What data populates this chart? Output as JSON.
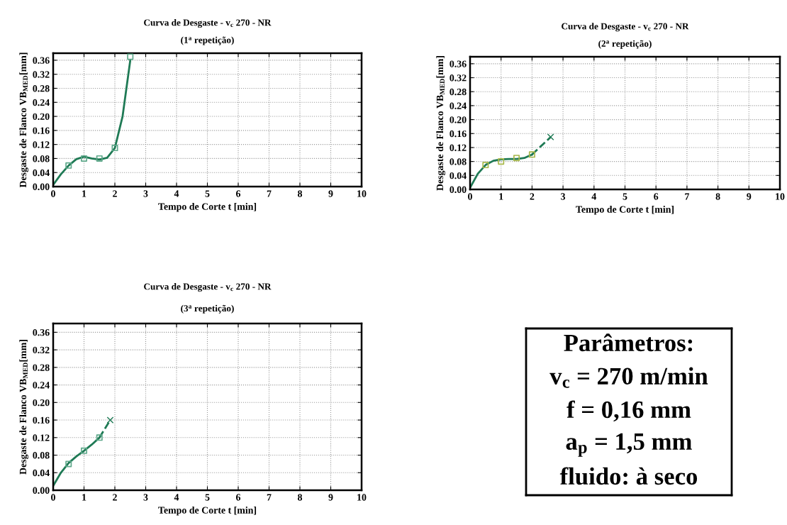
{
  "chart_data": [
    {
      "type": "scatter",
      "title": "Curva de Desgaste - v$_{c}$ 270 - NR",
      "subtitle": "(1$^{a}$ repetição)",
      "xlabel": "Tempo de Corte t [min]",
      "ylabel": "Desgaste de Flanco VB$_{MED}$[mm]",
      "xlim": [
        0,
        10
      ],
      "ylim": [
        0,
        0.38
      ],
      "xticks": [
        0,
        1,
        2,
        3,
        4,
        5,
        6,
        7,
        8,
        9,
        10
      ],
      "yticks": [
        {
          "value": 0,
          "label": "0.00"
        },
        {
          "value": 0.04,
          "label": "0.04"
        },
        {
          "value": 0.08,
          "label": "0.08"
        },
        {
          "value": 0.12,
          "label": "0.12"
        },
        {
          "value": 0.16,
          "label": "0.16"
        },
        {
          "value": 0.2,
          "label": "0.20"
        },
        {
          "value": 0.24,
          "label": "0.24"
        },
        {
          "value": 0.28,
          "label": "0.28"
        },
        {
          "value": 0.32,
          "label": "0.32"
        },
        {
          "value": 0.36,
          "label": "0.36"
        }
      ],
      "grid": true,
      "series": [
        {
          "type": "line",
          "color": "#1f7a55",
          "line_style": "solid",
          "marker": "none",
          "x": [
            0,
            0.25,
            0.5,
            0.75,
            1,
            1.25,
            1.5,
            1.75,
            2,
            2.25,
            2.5
          ],
          "values": [
            0.005,
            0.035,
            0.06,
            0.078,
            0.085,
            0.08,
            0.077,
            0.082,
            0.11,
            0.2,
            0.36
          ]
        },
        {
          "type": "scatter",
          "color": "#5ea88a",
          "marker": "square",
          "x": [
            0.5,
            1,
            1.5,
            2,
            2.5
          ],
          "values": [
            0.06,
            0.08,
            0.08,
            0.11,
            0.37
          ]
        }
      ]
    },
    {
      "type": "scatter",
      "title": "Curva de Desgaste - v$_{c}$ 270 - NR",
      "subtitle": "(2$^{a}$ repetição)",
      "xlabel": "Tempo de Corte t [min]",
      "ylabel": "Desgaste de Flanco VB$_{MED}$[mm]",
      "xlim": [
        0,
        10
      ],
      "ylim": [
        0,
        0.38
      ],
      "xticks": [
        0,
        1,
        2,
        3,
        4,
        5,
        6,
        7,
        8,
        9,
        10
      ],
      "yticks": [
        {
          "value": 0,
          "label": "0.00"
        },
        {
          "value": 0.04,
          "label": "0.04"
        },
        {
          "value": 0.08,
          "label": "0.08"
        },
        {
          "value": 0.12,
          "label": "0.12"
        },
        {
          "value": 0.16,
          "label": "0.16"
        },
        {
          "value": 0.2,
          "label": "0.20"
        },
        {
          "value": 0.24,
          "label": "0.24"
        },
        {
          "value": 0.28,
          "label": "0.28"
        },
        {
          "value": 0.32,
          "label": "0.32"
        },
        {
          "value": 0.36,
          "label": "0.36"
        }
      ],
      "grid": true,
      "series": [
        {
          "type": "line",
          "color": "#1f7a55",
          "line_style": "solid",
          "marker": "none",
          "x": [
            0,
            0.25,
            0.5,
            0.75,
            1,
            1.25,
            1.5,
            1.75,
            2
          ],
          "values": [
            0.005,
            0.045,
            0.07,
            0.082,
            0.086,
            0.087,
            0.087,
            0.09,
            0.1
          ]
        },
        {
          "type": "line",
          "color": "#1f7a55",
          "line_style": "dashed",
          "marker": "cross",
          "x": [
            2,
            2.6
          ],
          "values": [
            0.1,
            0.15
          ]
        },
        {
          "type": "scatter",
          "color": "#a8b84a",
          "marker": "square",
          "x": [
            0.5,
            1,
            1.5,
            2
          ],
          "values": [
            0.07,
            0.08,
            0.09,
            0.1
          ]
        }
      ]
    },
    {
      "type": "scatter",
      "title": "Curva de Desgaste - v$_{c}$ 270 - NR",
      "subtitle": "(3$^{a}$ repetição)",
      "xlabel": "Tempo de Corte t [min]",
      "ylabel": "Desgaste de Flanco VB$_{MED}$[mm]",
      "xlim": [
        0,
        10
      ],
      "ylim": [
        0,
        0.38
      ],
      "xticks": [
        0,
        1,
        2,
        3,
        4,
        5,
        6,
        7,
        8,
        9,
        10
      ],
      "yticks": [
        {
          "value": 0,
          "label": "0.00"
        },
        {
          "value": 0.04,
          "label": "0.04"
        },
        {
          "value": 0.08,
          "label": "0.08"
        },
        {
          "value": 0.12,
          "label": "0.12"
        },
        {
          "value": 0.16,
          "label": "0.16"
        },
        {
          "value": 0.2,
          "label": "0.20"
        },
        {
          "value": 0.24,
          "label": "0.24"
        },
        {
          "value": 0.28,
          "label": "0.28"
        },
        {
          "value": 0.32,
          "label": "0.32"
        },
        {
          "value": 0.36,
          "label": "0.36"
        }
      ],
      "grid": true,
      "series": [
        {
          "type": "line",
          "color": "#1f7a55",
          "line_style": "solid",
          "marker": "none",
          "x": [
            0,
            0.25,
            0.5,
            0.75,
            1,
            1.25,
            1.5
          ],
          "values": [
            0.01,
            0.04,
            0.062,
            0.077,
            0.09,
            0.104,
            0.12
          ]
        },
        {
          "type": "line",
          "color": "#1f7a55",
          "line_style": "dashed",
          "marker": "cross",
          "x": [
            1.5,
            1.85
          ],
          "values": [
            0.12,
            0.16
          ]
        },
        {
          "type": "scatter",
          "color": "#5ea88a",
          "marker": "square",
          "x": [
            0.5,
            1,
            1.5
          ],
          "values": [
            0.06,
            0.09,
            0.12
          ]
        }
      ]
    },
    {
      "type": "other",
      "annotations": [
        "Parâmetros:",
        "v$_{c}$ = 270 m/min",
        "f = 0,16 mm",
        "a$_{p}$ = 1,5 mm",
        "fluido: à seco"
      ]
    }
  ]
}
